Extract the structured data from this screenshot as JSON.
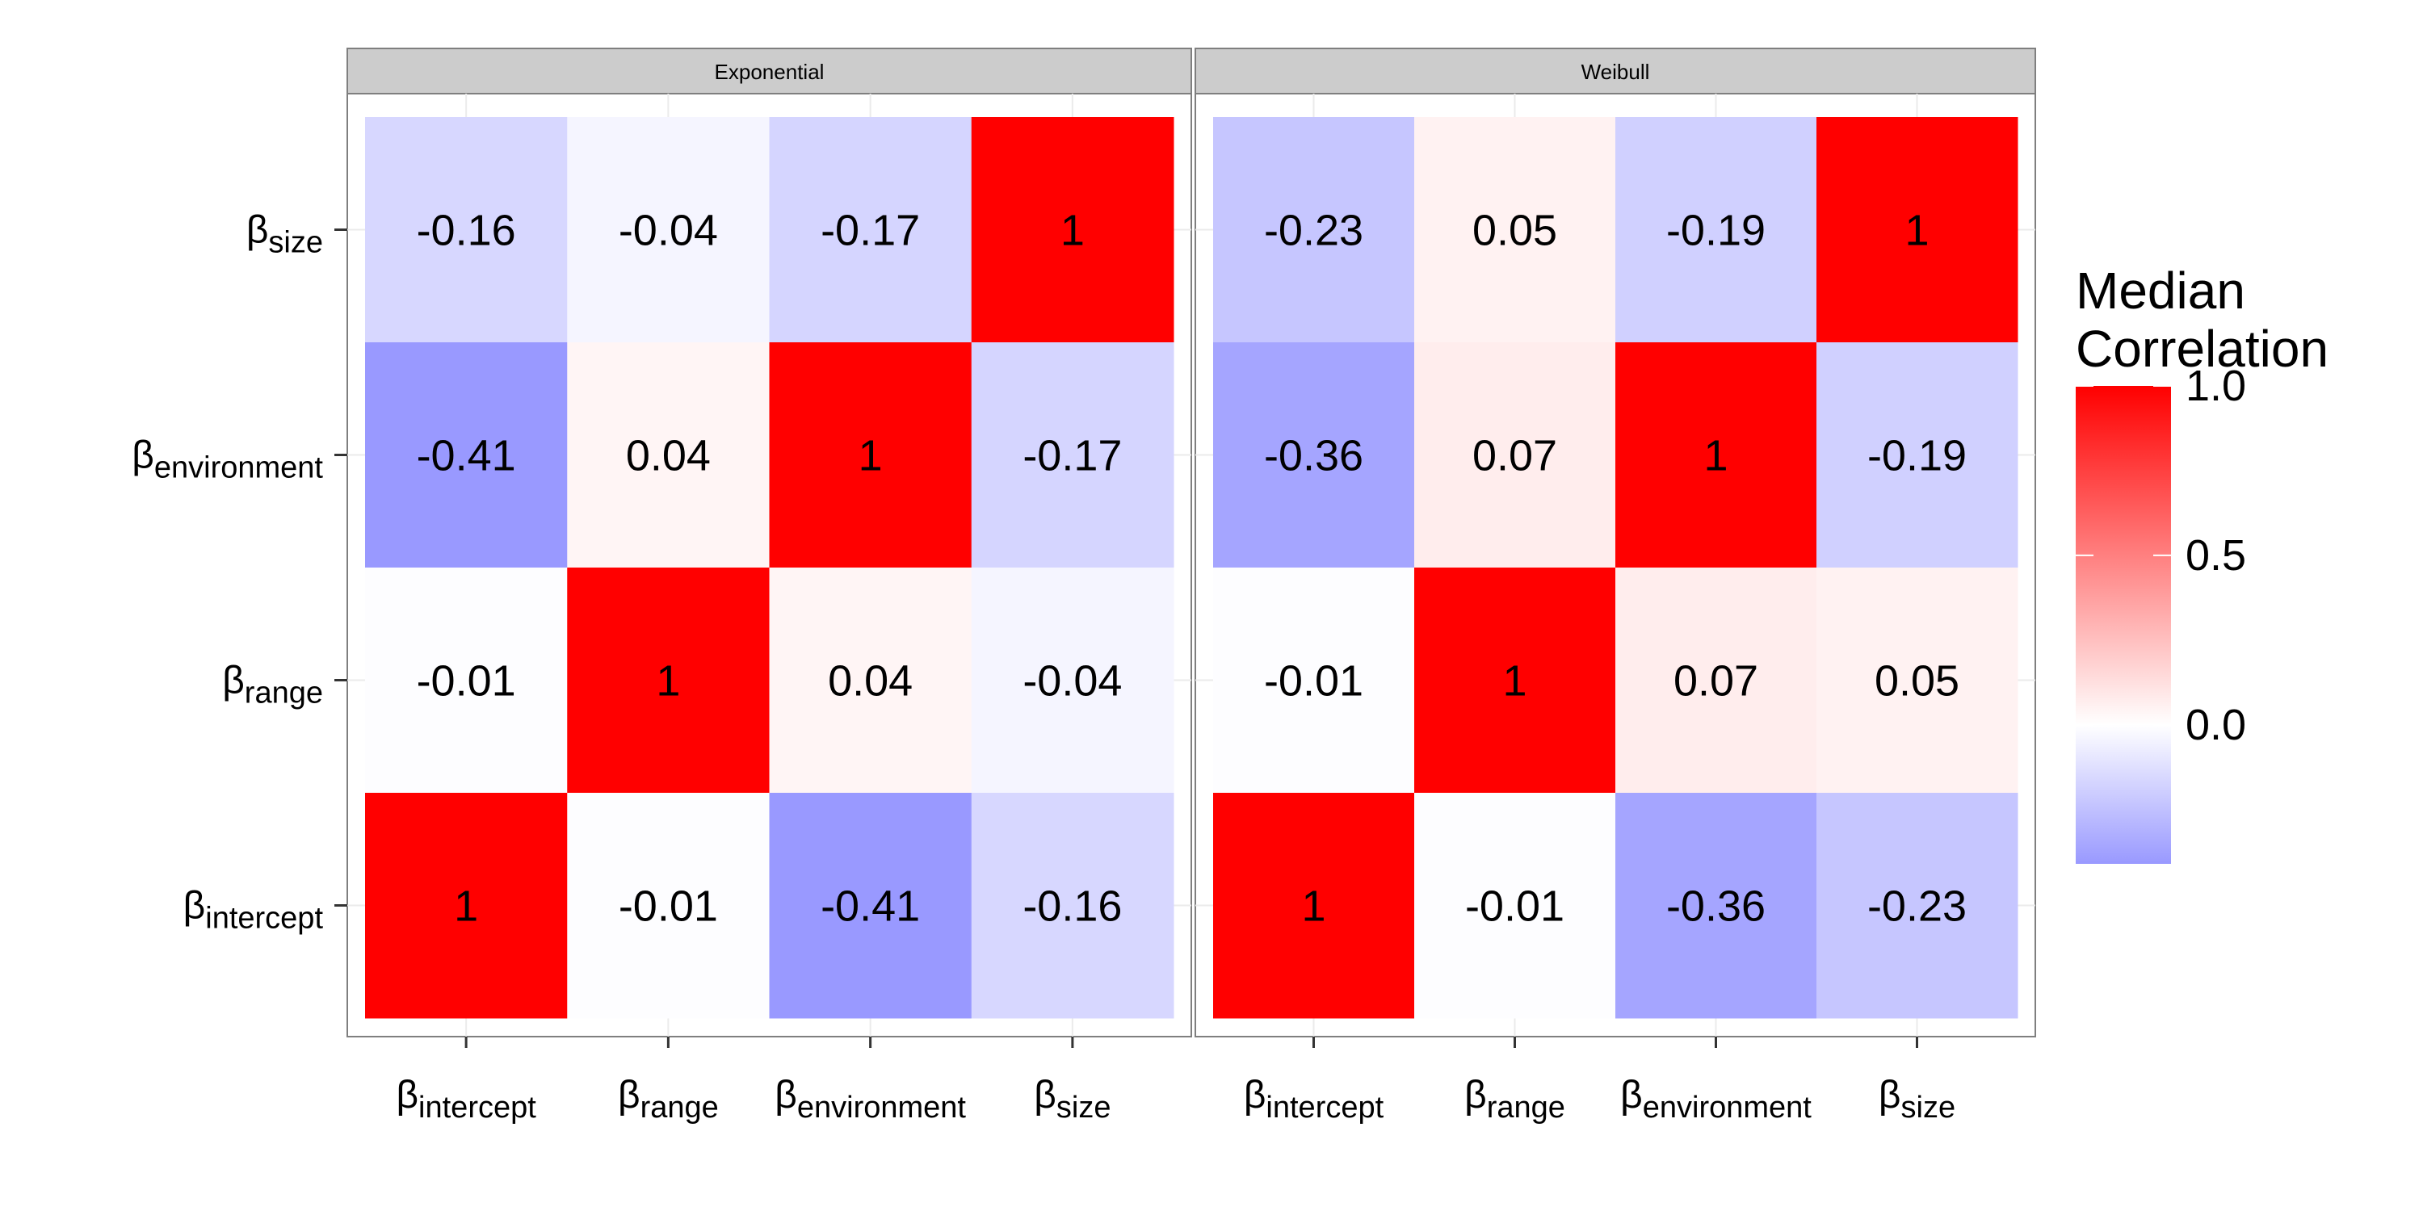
{
  "chart_data": {
    "type": "heatmap",
    "panels": [
      {
        "title": "Exponential",
        "x_categories": [
          {
            "base": "β",
            "sub": "intercept"
          },
          {
            "base": "β",
            "sub": "range"
          },
          {
            "base": "β",
            "sub": "environment"
          },
          {
            "base": "β",
            "sub": "size"
          }
        ],
        "y_categories": [
          {
            "base": "β",
            "sub": "size"
          },
          {
            "base": "β",
            "sub": "environment"
          },
          {
            "base": "β",
            "sub": "range"
          },
          {
            "base": "β",
            "sub": "intercept"
          }
        ],
        "values": [
          [
            -0.16,
            -0.04,
            -0.17,
            1
          ],
          [
            -0.41,
            0.04,
            1,
            -0.17
          ],
          [
            -0.01,
            1,
            0.04,
            -0.04
          ],
          [
            1,
            -0.01,
            -0.41,
            -0.16
          ]
        ],
        "labels": [
          [
            "-0.16",
            "-0.04",
            "-0.17",
            "1"
          ],
          [
            "-0.41",
            "0.04",
            "1",
            "-0.17"
          ],
          [
            "-0.01",
            "1",
            "0.04",
            "-0.04"
          ],
          [
            "1",
            "-0.01",
            "-0.41",
            "-0.16"
          ]
        ]
      },
      {
        "title": "Weibull",
        "x_categories": [
          {
            "base": "β",
            "sub": "intercept"
          },
          {
            "base": "β",
            "sub": "range"
          },
          {
            "base": "β",
            "sub": "environment"
          },
          {
            "base": "β",
            "sub": "size"
          }
        ],
        "y_categories": [
          {
            "base": "β",
            "sub": "size"
          },
          {
            "base": "β",
            "sub": "environment"
          },
          {
            "base": "β",
            "sub": "range"
          },
          {
            "base": "β",
            "sub": "intercept"
          }
        ],
        "values": [
          [
            -0.23,
            0.05,
            -0.19,
            1
          ],
          [
            -0.36,
            0.07,
            1,
            -0.19
          ],
          [
            -0.01,
            1,
            0.07,
            0.05
          ],
          [
            1,
            -0.01,
            -0.36,
            -0.23
          ]
        ],
        "labels": [
          [
            "-0.23",
            "0.05",
            "-0.19",
            "1"
          ],
          [
            "-0.36",
            "0.07",
            "1",
            "-0.19"
          ],
          [
            "-0.01",
            "1",
            "0.07",
            "0.05"
          ],
          [
            "1",
            "-0.01",
            "-0.36",
            "-0.23"
          ]
        ]
      }
    ],
    "legend": {
      "title_lines": [
        "Median",
        "Correlation"
      ],
      "ticks": [
        1.0,
        0.5,
        0.0
      ],
      "tick_labels": [
        "1.0",
        "0.5",
        "0.0"
      ],
      "range": [
        -0.41,
        1.0
      ],
      "placement": "right"
    },
    "colors": {
      "low": "#9999ff",
      "mid": "#ffffff",
      "high": "#ff0000",
      "panel_strip": "#cccccc",
      "panel_border": "#7f7f7f",
      "grid": "#ebebeb"
    },
    "grid": true
  }
}
